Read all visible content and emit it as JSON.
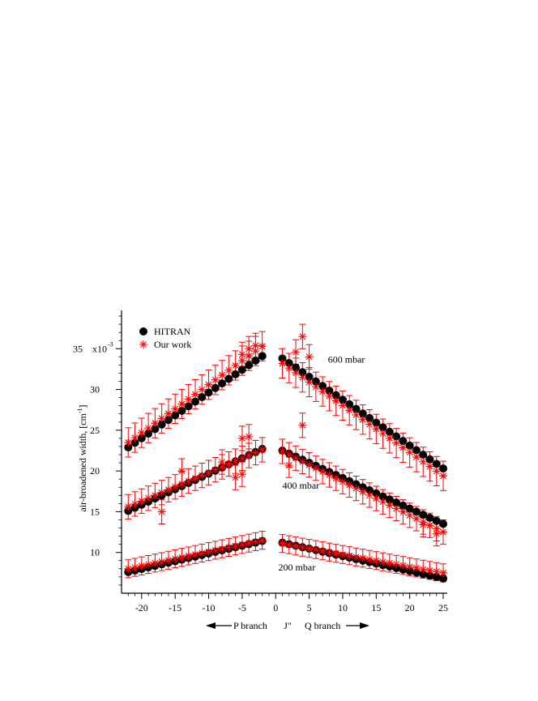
{
  "chart_data": {
    "type": "scatter",
    "title": "",
    "xlabel": "J\"",
    "ylabel": "air-broadened width, [cm",
    "ylabel_sup": "-1",
    "ylabel_end": "]",
    "xlim": [
      -23,
      25.6
    ],
    "ylim": [
      5.0,
      39.7
    ],
    "y_multiplier_label": "x10",
    "y_multiplier_exp": "-3",
    "x_ticks": [
      -20,
      -15,
      -10,
      -5,
      0,
      5,
      10,
      15,
      20,
      25
    ],
    "x_tick_labels": [
      "-20",
      "-15",
      "-10",
      "-5",
      "0",
      "5",
      "10",
      "15",
      "20",
      "25"
    ],
    "y_ticks": [
      10,
      15,
      20,
      25,
      30,
      35
    ],
    "y_tick_labels": [
      "10",
      "15",
      "20",
      "25",
      "30",
      "35"
    ],
    "grid": false,
    "legend": {
      "position": "top-left",
      "entries": [
        {
          "label": "HITRAN",
          "marker": "filled-circle",
          "color": "#000000"
        },
        {
          "label": "Our work",
          "marker": "asterisk",
          "color": "#ff0000"
        }
      ]
    },
    "annotations": [
      {
        "text": "600 mbar",
        "x": 7.8,
        "y": 33.7
      },
      {
        "text": "400 mbar",
        "x": 1.0,
        "y": 18.2
      },
      {
        "text": "200 mbar",
        "x": 0.4,
        "y": 8.2
      }
    ],
    "branch_labels": {
      "p": "P branch",
      "q": "Q branch"
    },
    "colors": {
      "hitran": "#000000",
      "our_work": "#ff0000"
    },
    "series": [
      {
        "name": "HITRAN",
        "groups": [
          {
            "pressure": "600 mbar",
            "segments": [
              {
                "x_from": -22,
                "x_to": -2,
                "y_from": 22.9,
                "y_to": 34.1
              },
              {
                "x_from": 1,
                "x_to": 25,
                "y_from": 33.8,
                "y_to": 20.3
              }
            ]
          },
          {
            "pressure": "400 mbar",
            "segments": [
              {
                "x_from": -22,
                "x_to": -2,
                "y_from": 15.1,
                "y_to": 22.7
              },
              {
                "x_from": 1,
                "x_to": 25,
                "y_from": 22.5,
                "y_to": 13.5
              }
            ]
          },
          {
            "pressure": "200 mbar",
            "segments": [
              {
                "x_from": -22,
                "x_to": -2,
                "y_from": 7.6,
                "y_to": 11.4
              },
              {
                "x_from": 1,
                "x_to": 25,
                "y_from": 11.2,
                "y_to": 6.8
              }
            ]
          }
        ]
      },
      {
        "name": "Our work",
        "error_bar_sizes": {
          "600 mbar": 1.8,
          "400 mbar": 1.5,
          "200 mbar": 1.1
        },
        "groups": [
          {
            "pressure": "600 mbar",
            "segments": [
              {
                "x_from": -22,
                "x_to": -2,
                "y_from": 23.5,
                "y_to": 35.3
              },
              {
                "x_from": 1,
                "x_to": 25,
                "y_from": 33.2,
                "y_to": 19.4
              }
            ]
          },
          {
            "pressure": "400 mbar",
            "segments": [
              {
                "x_from": -22,
                "x_to": -2,
                "y_from": 15.6,
                "y_to": 22.6
              },
              {
                "x_from": 1,
                "x_to": 25,
                "y_from": 22.4,
                "y_to": 12.5
              }
            ]
          },
          {
            "pressure": "200 mbar",
            "segments": [
              {
                "x_from": -22,
                "x_to": -2,
                "y_from": 8.0,
                "y_to": 11.5
              },
              {
                "x_from": 1,
                "x_to": 25,
                "y_from": 11.1,
                "y_to": 7.5
              }
            ]
          }
        ],
        "outliers": [
          {
            "x": -5,
            "y": 34.3
          },
          {
            "x": -4,
            "y": 35.0
          },
          {
            "x": -3,
            "y": 35.4
          },
          {
            "x": -5,
            "y": 24.0
          },
          {
            "x": -4,
            "y": 24.2
          },
          {
            "x": -6,
            "y": 19.2
          },
          {
            "x": -5,
            "y": 19.6
          },
          {
            "x": 4,
            "y": 36.5
          },
          {
            "x": 3,
            "y": 34.6
          },
          {
            "x": 5,
            "y": 34.0
          },
          {
            "x": 4,
            "y": 25.6
          },
          {
            "x": 2,
            "y": 20.7
          },
          {
            "x": -14,
            "y": 20.0
          },
          {
            "x": -8,
            "y": 21.1
          },
          {
            "x": -17,
            "y": 15.0
          },
          {
            "x": 24,
            "y": 12.3
          },
          {
            "x": 22,
            "y": 13.4
          }
        ]
      }
    ]
  }
}
